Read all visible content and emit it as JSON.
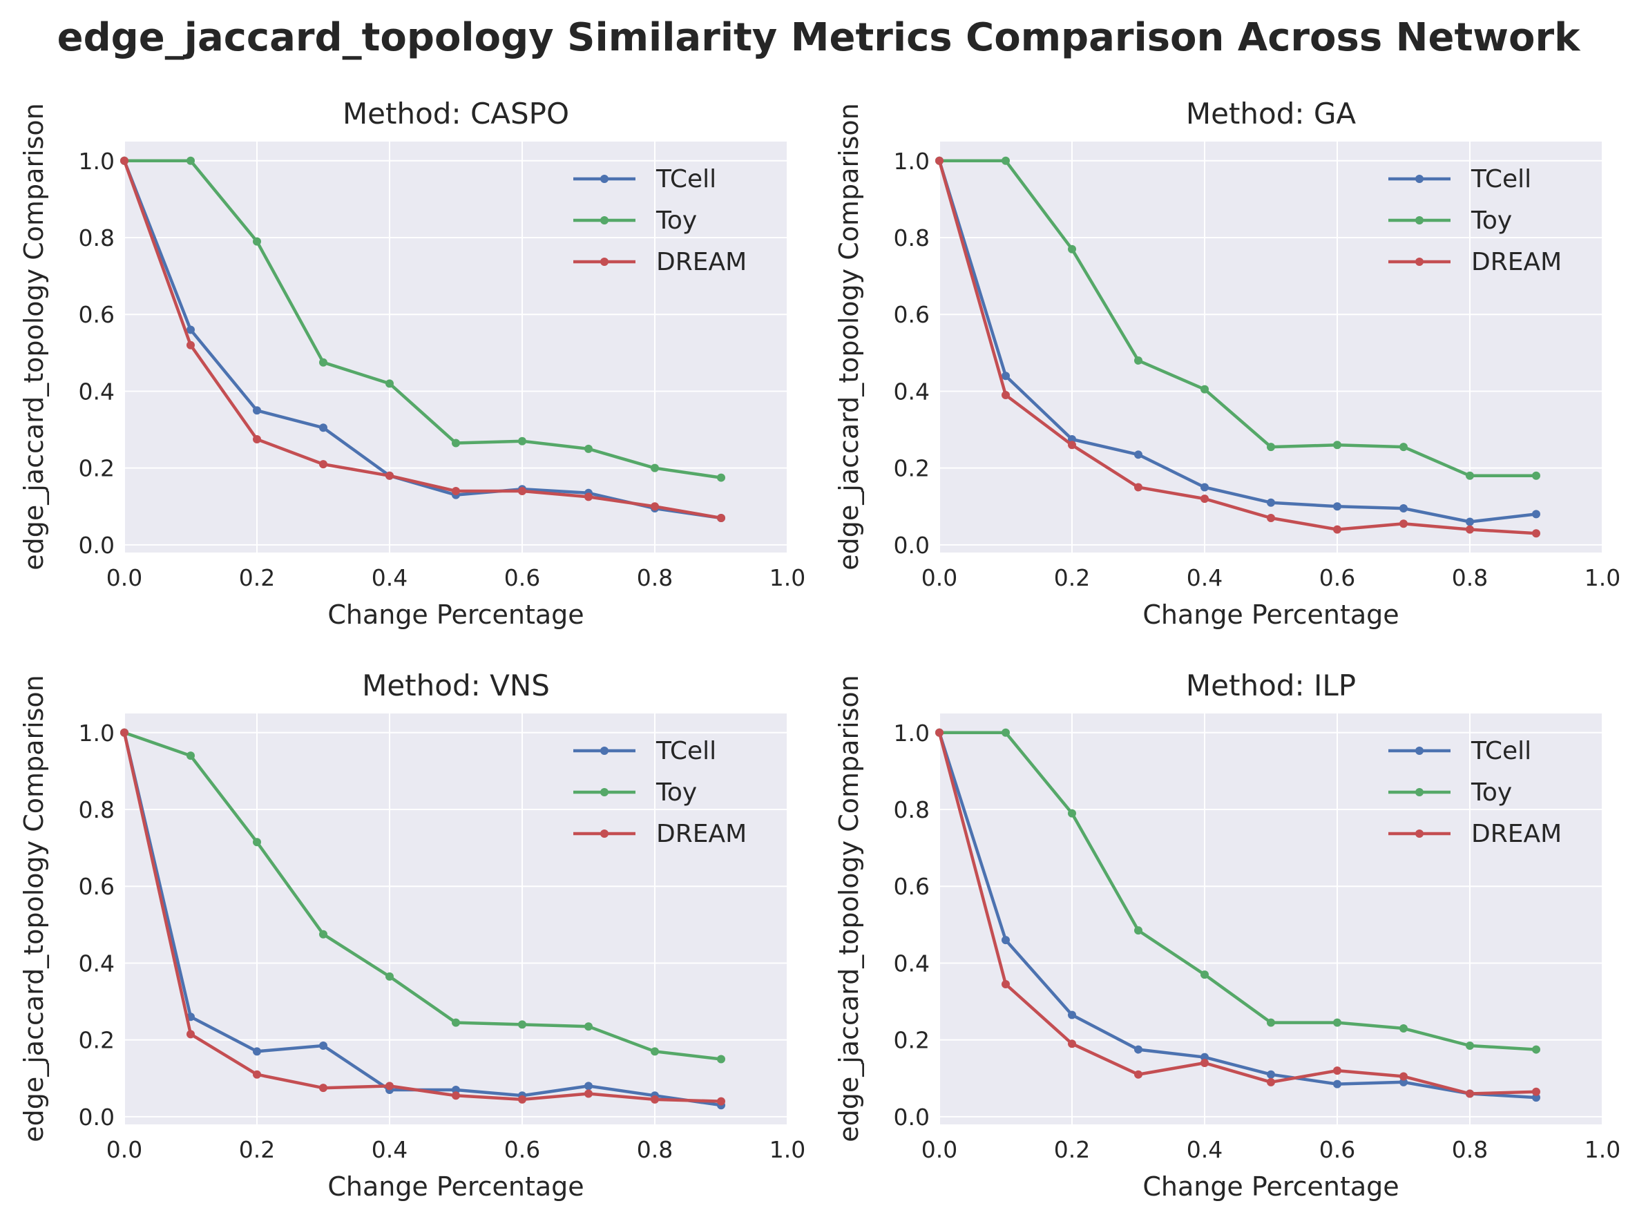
{
  "figure": {
    "title": "edge_jaccard_topology Similarity Metrics Comparison Across Network"
  },
  "colors": {
    "TCell": "#4c72b0",
    "Toy": "#55a868",
    "DREAM": "#c44e52",
    "plot_background": "#eaeaf2",
    "grid": "#ffffff"
  },
  "chart_data": [
    {
      "type": "line",
      "title": "Method: CASPO",
      "xlabel": "Change Percentage",
      "ylabel": "edge_jaccard_topology Comparison",
      "xlim": [
        0.0,
        1.0
      ],
      "ylim": [
        -0.02,
        1.05
      ],
      "xticks": [
        "0.0",
        "0.2",
        "0.4",
        "0.6",
        "0.8",
        "1.0"
      ],
      "yticks": [
        "0.0",
        "0.2",
        "0.4",
        "0.6",
        "0.8",
        "1.0"
      ],
      "grid": true,
      "legend_position": "top-right",
      "x": [
        0.0,
        0.1,
        0.2,
        0.3,
        0.4,
        0.5,
        0.6,
        0.7,
        0.8,
        0.9
      ],
      "series": [
        {
          "name": "TCell",
          "values": [
            1.0,
            0.56,
            0.35,
            0.305,
            0.18,
            0.13,
            0.145,
            0.135,
            0.095,
            0.07
          ]
        },
        {
          "name": "Toy",
          "values": [
            1.0,
            1.0,
            0.79,
            0.475,
            0.42,
            0.265,
            0.27,
            0.25,
            0.2,
            0.175
          ]
        },
        {
          "name": "DREAM",
          "values": [
            1.0,
            0.52,
            0.275,
            0.21,
            0.18,
            0.14,
            0.14,
            0.125,
            0.1,
            0.07
          ]
        }
      ]
    },
    {
      "type": "line",
      "title": "Method: GA",
      "xlabel": "Change Percentage",
      "ylabel": "edge_jaccard_topology Comparison",
      "xlim": [
        0.0,
        1.0
      ],
      "ylim": [
        -0.02,
        1.05
      ],
      "xticks": [
        "0.0",
        "0.2",
        "0.4",
        "0.6",
        "0.8",
        "1.0"
      ],
      "yticks": [
        "0.0",
        "0.2",
        "0.4",
        "0.6",
        "0.8",
        "1.0"
      ],
      "grid": true,
      "legend_position": "top-right",
      "x": [
        0.0,
        0.1,
        0.2,
        0.3,
        0.4,
        0.5,
        0.6,
        0.7,
        0.8,
        0.9
      ],
      "series": [
        {
          "name": "TCell",
          "values": [
            1.0,
            0.44,
            0.275,
            0.235,
            0.15,
            0.11,
            0.1,
            0.095,
            0.06,
            0.08
          ]
        },
        {
          "name": "Toy",
          "values": [
            1.0,
            1.0,
            0.77,
            0.48,
            0.405,
            0.255,
            0.26,
            0.255,
            0.18,
            0.18
          ]
        },
        {
          "name": "DREAM",
          "values": [
            1.0,
            0.39,
            0.26,
            0.15,
            0.12,
            0.07,
            0.04,
            0.055,
            0.04,
            0.03
          ]
        }
      ]
    },
    {
      "type": "line",
      "title": "Method: VNS",
      "xlabel": "Change Percentage",
      "ylabel": "edge_jaccard_topology Comparison",
      "xlim": [
        0.0,
        1.0
      ],
      "ylim": [
        -0.02,
        1.05
      ],
      "xticks": [
        "0.0",
        "0.2",
        "0.4",
        "0.6",
        "0.8",
        "1.0"
      ],
      "yticks": [
        "0.0",
        "0.2",
        "0.4",
        "0.6",
        "0.8",
        "1.0"
      ],
      "grid": true,
      "legend_position": "top-right",
      "x": [
        0.0,
        0.1,
        0.2,
        0.3,
        0.4,
        0.5,
        0.6,
        0.7,
        0.8,
        0.9
      ],
      "series": [
        {
          "name": "TCell",
          "values": [
            1.0,
            0.26,
            0.17,
            0.185,
            0.07,
            0.07,
            0.055,
            0.08,
            0.055,
            0.03
          ]
        },
        {
          "name": "Toy",
          "values": [
            1.0,
            0.94,
            0.715,
            0.475,
            0.365,
            0.245,
            0.24,
            0.235,
            0.17,
            0.15
          ]
        },
        {
          "name": "DREAM",
          "values": [
            1.0,
            0.215,
            0.11,
            0.075,
            0.08,
            0.055,
            0.045,
            0.06,
            0.045,
            0.04
          ]
        }
      ]
    },
    {
      "type": "line",
      "title": "Method: ILP",
      "xlabel": "Change Percentage",
      "ylabel": "edge_jaccard_topology Comparison",
      "xlim": [
        0.0,
        1.0
      ],
      "ylim": [
        -0.02,
        1.05
      ],
      "xticks": [
        "0.0",
        "0.2",
        "0.4",
        "0.6",
        "0.8",
        "1.0"
      ],
      "yticks": [
        "0.0",
        "0.2",
        "0.4",
        "0.6",
        "0.8",
        "1.0"
      ],
      "grid": true,
      "legend_position": "top-right",
      "x": [
        0.0,
        0.1,
        0.2,
        0.3,
        0.4,
        0.5,
        0.6,
        0.7,
        0.8,
        0.9
      ],
      "series": [
        {
          "name": "TCell",
          "values": [
            1.0,
            0.46,
            0.265,
            0.175,
            0.155,
            0.11,
            0.085,
            0.09,
            0.06,
            0.05
          ]
        },
        {
          "name": "Toy",
          "values": [
            1.0,
            1.0,
            0.79,
            0.485,
            0.37,
            0.245,
            0.245,
            0.23,
            0.185,
            0.175
          ]
        },
        {
          "name": "DREAM",
          "values": [
            1.0,
            0.345,
            0.19,
            0.11,
            0.14,
            0.09,
            0.12,
            0.105,
            0.06,
            0.065
          ]
        }
      ]
    }
  ]
}
